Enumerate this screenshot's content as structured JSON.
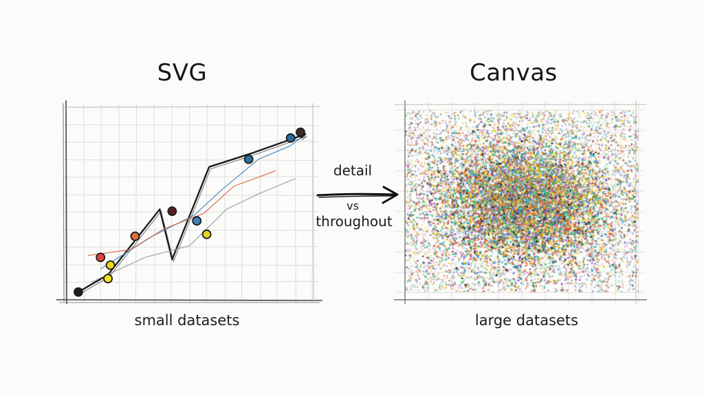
{
  "left": {
    "title": "SVG",
    "caption": "small datasets",
    "line_series": [
      {
        "color": "#1c1c1c",
        "points": [
          [
            0.05,
            0.04
          ],
          [
            0.17,
            0.13
          ],
          [
            0.38,
            0.47
          ],
          [
            0.43,
            0.21
          ],
          [
            0.58,
            0.69
          ],
          [
            0.75,
            0.76
          ],
          [
            0.97,
            0.86
          ],
          [
            0.95,
            0.84
          ]
        ]
      },
      {
        "color": "#3b83b5",
        "points": [
          [
            0.14,
            0.16
          ],
          [
            0.35,
            0.33
          ],
          [
            0.52,
            0.44
          ],
          [
            0.63,
            0.57
          ],
          [
            0.78,
            0.73
          ],
          [
            0.91,
            0.8
          ],
          [
            0.95,
            0.84
          ]
        ]
      },
      {
        "color": "#d95f3e",
        "points": [
          [
            0.09,
            0.23
          ],
          [
            0.26,
            0.26
          ],
          [
            0.4,
            0.37
          ],
          [
            0.56,
            0.45
          ],
          [
            0.68,
            0.59
          ],
          [
            0.85,
            0.67
          ]
        ]
      },
      {
        "color": "#9a9a9a",
        "points": [
          [
            0.1,
            0.09
          ],
          [
            0.32,
            0.22
          ],
          [
            0.5,
            0.28
          ],
          [
            0.65,
            0.47
          ],
          [
            0.78,
            0.55
          ],
          [
            0.93,
            0.63
          ]
        ]
      }
    ],
    "markers": [
      {
        "x": 0.05,
        "y": 0.04,
        "color": "#1c1c1c"
      },
      {
        "x": 0.14,
        "y": 0.22,
        "color": "#d9453a"
      },
      {
        "x": 0.18,
        "y": 0.18,
        "color": "#e8d81c"
      },
      {
        "x": 0.17,
        "y": 0.11,
        "color": "#f2e21a"
      },
      {
        "x": 0.28,
        "y": 0.33,
        "color": "#e0703a"
      },
      {
        "x": 0.43,
        "y": 0.46,
        "color": "#5a2020"
      },
      {
        "x": 0.53,
        "y": 0.41,
        "color": "#3b83b5"
      },
      {
        "x": 0.57,
        "y": 0.34,
        "color": "#e4d61c"
      },
      {
        "x": 0.74,
        "y": 0.73,
        "color": "#2c6fa0"
      },
      {
        "x": 0.91,
        "y": 0.84,
        "color": "#2c6fa0"
      },
      {
        "x": 0.95,
        "y": 0.87,
        "color": "#3a2a2a"
      }
    ]
  },
  "middle": {
    "top": "detail",
    "vs": "vs",
    "bottom": "throughout"
  },
  "right": {
    "title": "Canvas",
    "caption": "large datasets",
    "palette": [
      "#e2452f",
      "#f0a400",
      "#2f8fd4",
      "#3fb34f",
      "#8a4fc2",
      "#1e1e1e",
      "#e05fa0",
      "#17b3b0",
      "#f2d21a",
      "#6b4a2a"
    ]
  }
}
